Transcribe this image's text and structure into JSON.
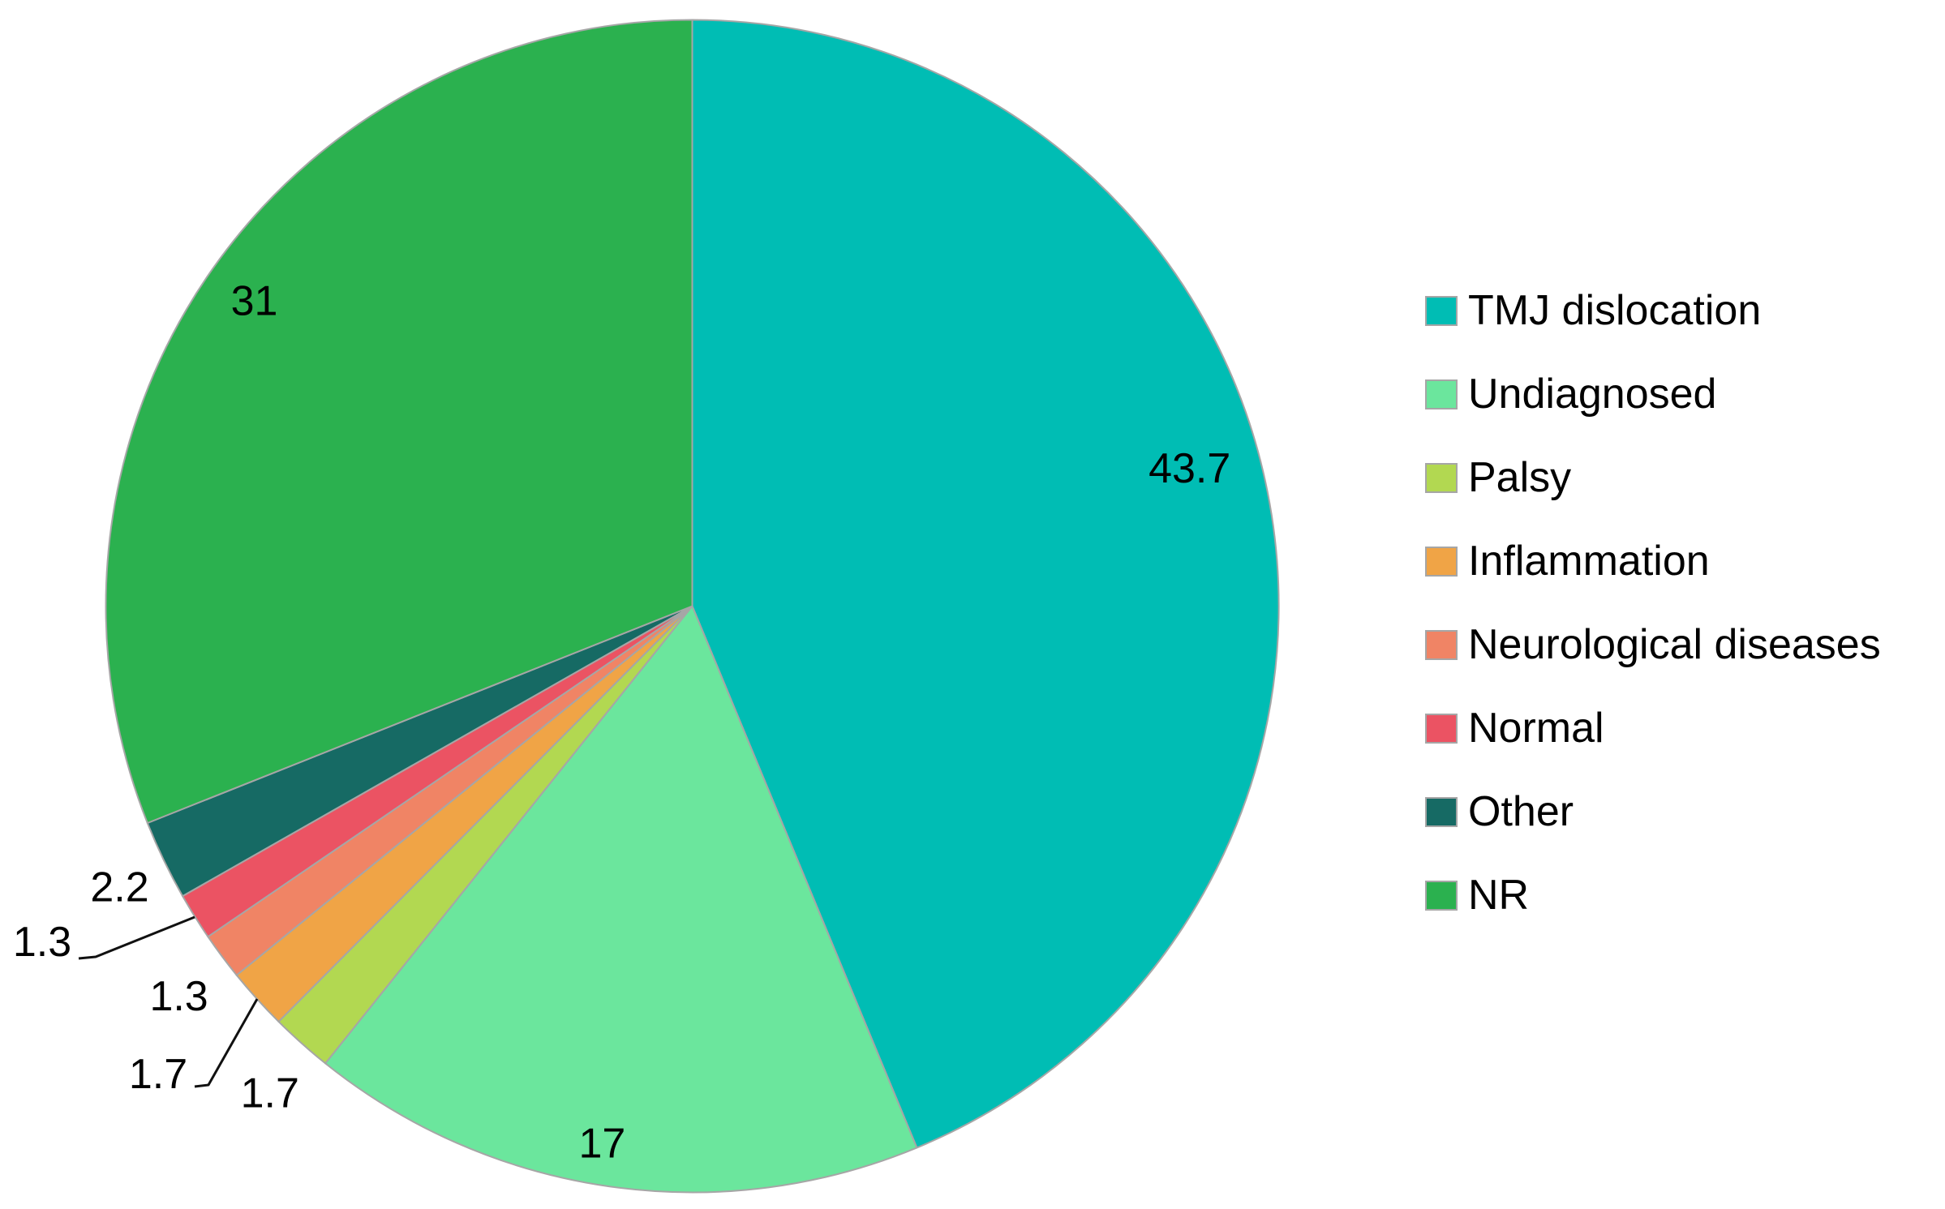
{
  "figure": {
    "background_color": "#ffffff"
  },
  "chart_data": {
    "type": "pie",
    "title": "",
    "categories": [
      "TMJ dislocation",
      "Undiagnosed",
      "Palsy",
      "Inflammation",
      "Neurological diseases",
      "Normal",
      "Other",
      "NR"
    ],
    "values": [
      43.7,
      17,
      1.7,
      1.7,
      1.3,
      1.3,
      2.2,
      31
    ],
    "data_labels": [
      "43.7",
      "17",
      "1.7",
      "1.7",
      "1.3",
      "1.3",
      "2.2",
      "31"
    ],
    "colors": [
      "#00bdb4",
      "#6be69d",
      "#b2d851",
      "#f0a446",
      "#f08465",
      "#eb5363",
      "#166a64",
      "#2bb14f"
    ],
    "slice_outline_color": "#a6a6a6",
    "label_text_color": "#000000",
    "leader_line_color": "#111111",
    "legend_position": "right",
    "legend_swatch_border_color": "#a6a6a6",
    "start_angle_deg": 0,
    "direction": "clockwise"
  }
}
